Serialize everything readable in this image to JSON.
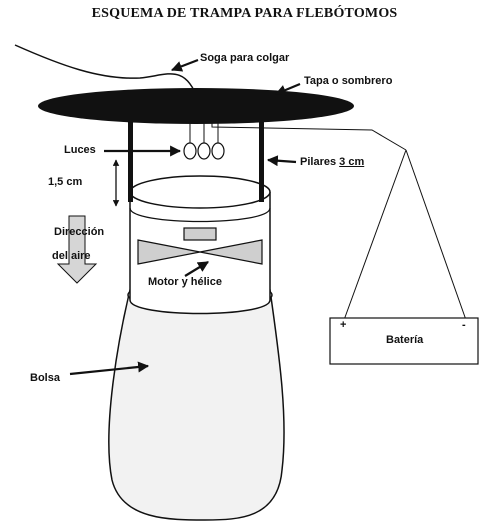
{
  "title": "ESQUEMA DE TRAMPA PARA FLEBÓTOMOS",
  "labels": {
    "hang_rope": "Soga para colgar",
    "lid": "Tapa o sombrero",
    "lights": "Luces",
    "pillars": "Pilares",
    "pillars_size": "3 cm",
    "distance": "1,5 cm",
    "air_direction_1": "Dirección",
    "air_direction_2": "del aire",
    "motor": "Motor y hélice",
    "bag": "Bolsa",
    "battery": "Batería",
    "battery_plus": "+",
    "battery_minus": "-"
  },
  "colors": {
    "ink": "#111111",
    "fan_fill": "#cfcfcf",
    "bag_fill": "#f2f2f2",
    "arrow_fill": "#d6d6d6"
  }
}
